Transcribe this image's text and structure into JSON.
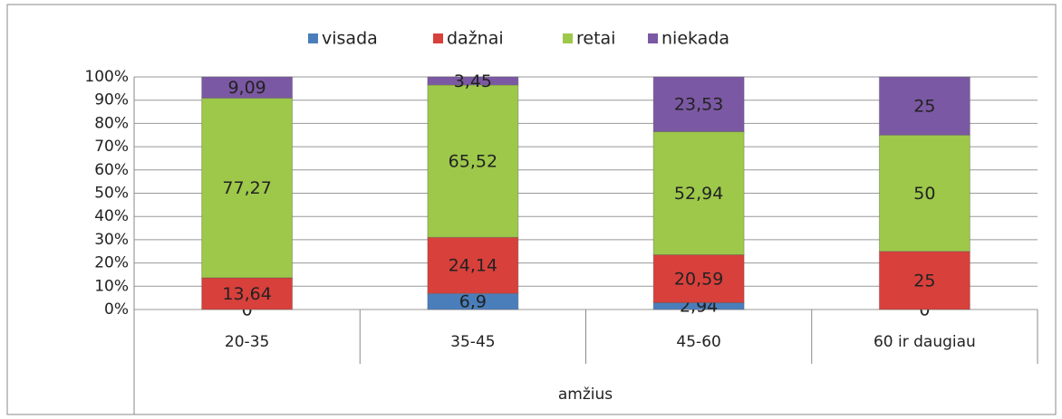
{
  "chart_data": {
    "type": "stacked_bar_percent",
    "categories": [
      "20-35",
      "35-45",
      "45-60",
      "60 ir daugiau"
    ],
    "x_label": "amžius",
    "series": [
      {
        "name": "visada",
        "color": "#4a7ebb",
        "values": [
          0,
          6.9,
          2.94,
          0
        ],
        "value_labels": [
          "0",
          "6,9",
          "2,94",
          "0"
        ]
      },
      {
        "name": "dažnai",
        "color": "#d8403b",
        "values": [
          13.64,
          24.14,
          20.59,
          25
        ],
        "value_labels": [
          "13,64",
          "24,14",
          "20,59",
          "25"
        ]
      },
      {
        "name": "retai",
        "color": "#9dc84a",
        "values": [
          77.27,
          65.52,
          52.94,
          50
        ],
        "value_labels": [
          "77,27",
          "65,52",
          "52,94",
          "50"
        ]
      },
      {
        "name": "niekada",
        "color": "#7b58a3",
        "values": [
          9.09,
          3.45,
          23.53,
          25
        ],
        "value_labels": [
          "9,09",
          "3,45",
          "23,53",
          "25"
        ]
      }
    ],
    "ylim": [
      0,
      100
    ],
    "yticks": [
      {
        "value": 0,
        "label": "0%"
      },
      {
        "value": 10,
        "label": "10%"
      },
      {
        "value": 20,
        "label": "20%"
      },
      {
        "value": 30,
        "label": "30%"
      },
      {
        "value": 40,
        "label": "40%"
      },
      {
        "value": 50,
        "label": "50%"
      },
      {
        "value": 60,
        "label": "60%"
      },
      {
        "value": 70,
        "label": "70%"
      },
      {
        "value": 80,
        "label": "80%"
      },
      {
        "value": 90,
        "label": "90%"
      },
      {
        "value": 100,
        "label": "100%"
      }
    ],
    "grid": true,
    "legend": "top"
  }
}
